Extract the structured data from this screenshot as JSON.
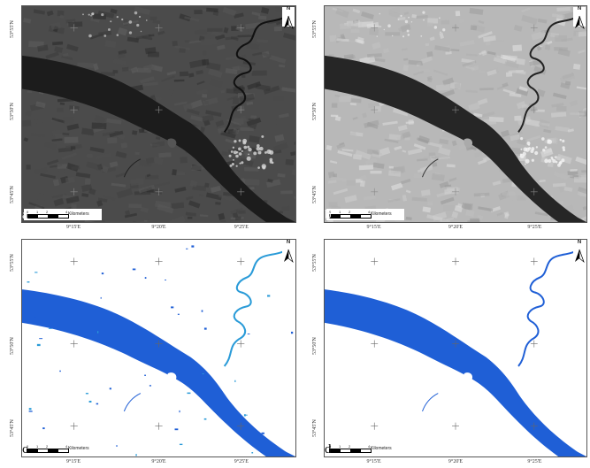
{
  "panels": [
    {
      "letter": "a",
      "style": "satellite-dark",
      "lat_labels": [
        "53°55'N",
        "53°50'N",
        "53°45'N"
      ],
      "lon_labels": [
        "9°15'E",
        "9°20'E",
        "9°25'E"
      ],
      "north_label": "N",
      "scale": {
        "ticks": [
          "0",
          "1",
          "2",
          "4"
        ],
        "unit": "Kilometers"
      }
    },
    {
      "letter": "b",
      "style": "satellite-light",
      "lat_labels": [
        "53°55'N",
        "53°50'N",
        "53°45'N"
      ],
      "lon_labels": [
        "9°15'E",
        "9°20'E",
        "9°25'E"
      ],
      "north_label": "N",
      "scale": {
        "ticks": [
          "0",
          "1",
          "2",
          "4"
        ],
        "unit": "Kilometers"
      }
    },
    {
      "letter": "c",
      "style": "water-mask-noisy",
      "lat_labels": [
        "53°55'N",
        "53°50'N",
        "53°45'N"
      ],
      "lon_labels": [
        "9°15'E",
        "9°20'E",
        "9°25'E"
      ],
      "north_label": "N",
      "scale": {
        "ticks": [
          "0",
          "1",
          "2",
          "4"
        ],
        "unit": "Kilometers"
      }
    },
    {
      "letter": "d",
      "style": "water-mask-clean",
      "lat_labels": [
        "53°55'N",
        "53°50'N",
        "53°45'N"
      ],
      "lon_labels": [
        "9°15'E",
        "9°20'E",
        "9°25'E"
      ],
      "north_label": "N",
      "scale": {
        "ticks": [
          "0",
          "1",
          "2",
          "4"
        ],
        "unit": "Kilometers"
      }
    }
  ],
  "colors": {
    "sat_dark_land": "#4b4b4b",
    "sat_dark_water": "#1c1c1c",
    "sat_light_land": "#b8b8b8",
    "sat_light_water": "#262626",
    "water_blue": "#1f5fd6",
    "water_light": "#2a9bd8"
  }
}
